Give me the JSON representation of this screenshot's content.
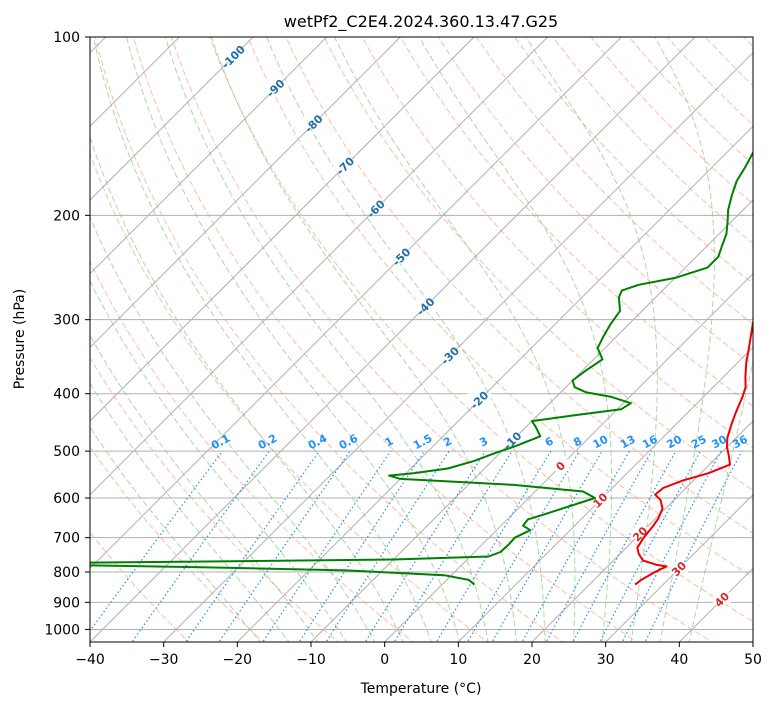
{
  "chart_data": {
    "type": "skew-t",
    "title": "wetPf2_C2E4.2024.360.13.47.G25",
    "xlabel": "Temperature (°C)",
    "ylabel": "Pressure (hPa)",
    "xlim": [
      -40,
      50
    ],
    "ylim": [
      1050,
      100
    ],
    "yscale": "log",
    "x_ticks": [
      -40,
      -30,
      -20,
      -10,
      0,
      10,
      20,
      30,
      40,
      50
    ],
    "x_tick_labels": [
      "−40",
      "−30",
      "−20",
      "−10",
      "0",
      "10",
      "20",
      "30",
      "40",
      "50"
    ],
    "y_ticks": [
      1000,
      900,
      800,
      700,
      600,
      500,
      400,
      300,
      200,
      100
    ],
    "y_tick_labels": [
      "1000",
      "900",
      "800",
      "700",
      "600",
      "500",
      "400",
      "300",
      "200",
      "100"
    ],
    "isotherm_labels": [
      "-100",
      "-90",
      "-80",
      "-70",
      "-60",
      "-50",
      "-40",
      "-30",
      "-20",
      "-10"
    ],
    "mixing_ratio_labels": [
      "0.1",
      "0.2",
      "0.4",
      "0.6",
      "1",
      "1.5",
      "2",
      "3",
      "4",
      "6",
      "8",
      "10",
      "13",
      "16",
      "20",
      "25",
      "30",
      "36"
    ],
    "lower_isotherm_labels": [
      "0",
      "10",
      "20",
      "30",
      "40"
    ],
    "colors": {
      "temperature": "#ee0000",
      "dewpoint": "#008000",
      "grid": "#b0b0b0",
      "dry_adiabat": "#ff9f7f",
      "moist_adiabat": "#8fc98f",
      "mixing_ratio": "#1e90ff",
      "isotherm_label_upper": "#1f6fa8",
      "isotherm_label_lower": "#d62728"
    },
    "series": [
      {
        "name": "",
        "role": "temperature",
        "points": [
          [
            26.2,
            840
          ],
          [
            26.4,
            825
          ],
          [
            27.2,
            800
          ],
          [
            28.0,
            783
          ],
          [
            26.5,
            778
          ],
          [
            24.0,
            765
          ],
          [
            22.5,
            745
          ],
          [
            21.5,
            728
          ],
          [
            21.0,
            700
          ],
          [
            20.7,
            670
          ],
          [
            20.4,
            650
          ],
          [
            19.6,
            625
          ],
          [
            18.2,
            605
          ],
          [
            16.7,
            592
          ],
          [
            16.9,
            577
          ],
          [
            18.6,
            560
          ],
          [
            21.0,
            545
          ],
          [
            22.8,
            527
          ],
          [
            21.5,
            510
          ],
          [
            20.0,
            492
          ],
          [
            18.8,
            475
          ],
          [
            17.5,
            450
          ],
          [
            16.5,
            430
          ],
          [
            15.3,
            405
          ],
          [
            14.4,
            390
          ],
          [
            13.0,
            375
          ],
          [
            11.2,
            355
          ],
          [
            9.8,
            338
          ],
          [
            8.2,
            320
          ],
          [
            6.8,
            305
          ],
          [
            5.5,
            290
          ],
          [
            4.0,
            276
          ],
          [
            2.5,
            262
          ],
          [
            0.6,
            250
          ],
          [
            -1.0,
            238
          ],
          [
            -3.0,
            225
          ],
          [
            -4.5,
            213
          ],
          [
            -6.2,
            200
          ],
          [
            -7.8,
            188
          ],
          [
            -9.7,
            176
          ],
          [
            -11.0,
            166
          ],
          [
            -12.0,
            156
          ],
          [
            -13.2,
            148
          ],
          [
            -14.7,
            140
          ],
          [
            -15.6,
            133
          ],
          [
            -15.3,
            127
          ],
          [
            -16.0,
            121
          ],
          [
            -18.0,
            115
          ],
          [
            -19.2,
            110
          ],
          [
            -20.5,
            105
          ],
          [
            -21.5,
            100
          ]
        ]
      },
      {
        "name": "",
        "role": "dewpoint",
        "points": [
          [
            4.4,
            840
          ],
          [
            3.0,
            825
          ],
          [
            -1.0,
            810
          ],
          [
            -15.0,
            795
          ],
          [
            -35.0,
            785
          ],
          [
            -55.0,
            778
          ],
          [
            -62.0,
            775
          ],
          [
            -55.0,
            772
          ],
          [
            -35.0,
            768
          ],
          [
            -10.0,
            762
          ],
          [
            2.5,
            753
          ],
          [
            3.5,
            740
          ],
          [
            3.6,
            720
          ],
          [
            3.5,
            700
          ],
          [
            4.6,
            680
          ],
          [
            3.0,
            668
          ],
          [
            2.8,
            652
          ],
          [
            4.5,
            638
          ],
          [
            9.0,
            600
          ],
          [
            6.5,
            585
          ],
          [
            -4.0,
            570
          ],
          [
            -20.0,
            557
          ],
          [
            -22.0,
            550
          ],
          [
            -19.0,
            545
          ],
          [
            -15.0,
            535
          ],
          [
            -12.5,
            520
          ],
          [
            -10.8,
            505
          ],
          [
            -8.8,
            490
          ],
          [
            -6.8,
            472
          ],
          [
            -8.7,
            455
          ],
          [
            -10.0,
            445
          ],
          [
            -5.0,
            435
          ],
          [
            0.5,
            425
          ],
          [
            1.0,
            415
          ],
          [
            -2.5,
            405
          ],
          [
            -6.5,
            398
          ],
          [
            -8.8,
            390
          ],
          [
            -10.0,
            380
          ],
          [
            -9.5,
            365
          ],
          [
            -8.8,
            350
          ],
          [
            -11.0,
            335
          ],
          [
            -11.8,
            320
          ],
          [
            -12.5,
            305
          ],
          [
            -13.0,
            290
          ],
          [
            -15.0,
            275
          ],
          [
            -15.5,
            268
          ],
          [
            -14.0,
            262
          ],
          [
            -10.0,
            255
          ],
          [
            -7.0,
            245
          ],
          [
            -7.0,
            235
          ],
          [
            -8.0,
            225
          ],
          [
            -9.0,
            215
          ],
          [
            -10.5,
            205
          ],
          [
            -12.0,
            196
          ],
          [
            -13.5,
            185
          ],
          [
            -14.8,
            175
          ],
          [
            -15.5,
            166
          ],
          [
            -16.5,
            156
          ],
          [
            -18.0,
            148
          ],
          [
            -18.0,
            141
          ],
          [
            -19.0,
            135
          ],
          [
            -20.0,
            129
          ],
          [
            -21.5,
            125
          ],
          [
            -23.5,
            122
          ],
          [
            -24.8,
            117
          ],
          [
            -25.0,
            113
          ],
          [
            -24.5,
            108
          ],
          [
            -24.4,
            104
          ],
          [
            -25.2,
            100
          ]
        ]
      }
    ]
  }
}
